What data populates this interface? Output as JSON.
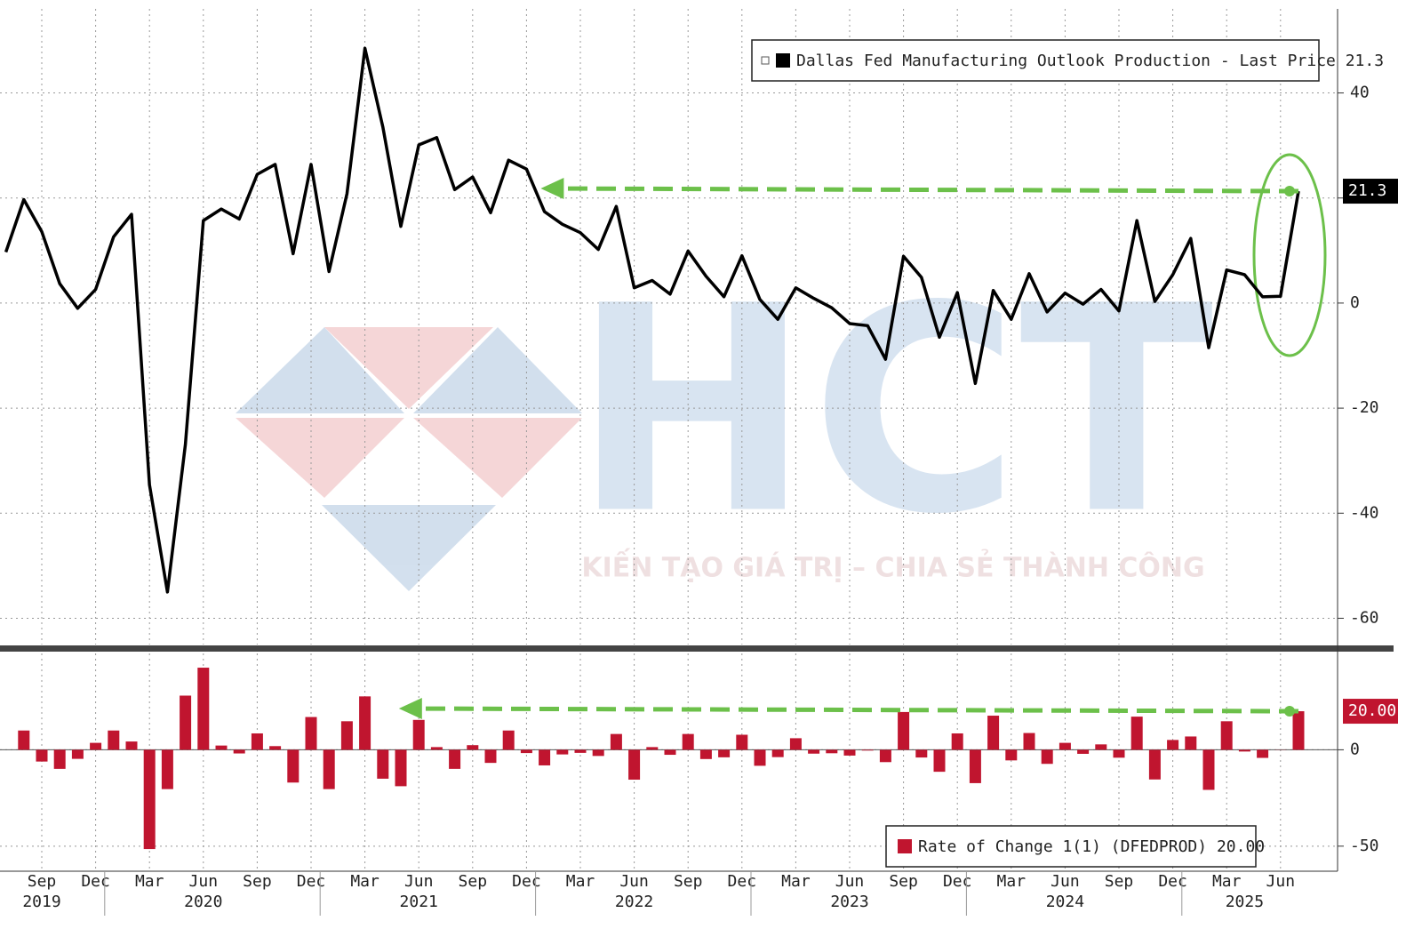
{
  "watermark": {
    "brand": "HCT",
    "slogan": "KIẾN TẠO GIÁ TRỊ – CHIA SẺ THÀNH CÔNG"
  },
  "chart_data": [
    {
      "type": "line",
      "x": [
        "2019-07",
        "2019-08",
        "2019-09",
        "2019-10",
        "2019-11",
        "2019-12",
        "2020-01",
        "2020-02",
        "2020-03",
        "2020-04",
        "2020-05",
        "2020-06",
        "2020-07",
        "2020-08",
        "2020-09",
        "2020-10",
        "2020-11",
        "2020-12",
        "2021-01",
        "2021-02",
        "2021-03",
        "2021-04",
        "2021-05",
        "2021-06",
        "2021-07",
        "2021-08",
        "2021-09",
        "2021-10",
        "2021-11",
        "2021-12",
        "2022-01",
        "2022-02",
        "2022-03",
        "2022-04",
        "2022-05",
        "2022-06",
        "2022-07",
        "2022-08",
        "2022-09",
        "2022-10",
        "2022-11",
        "2022-12",
        "2023-01",
        "2023-02",
        "2023-03",
        "2023-04",
        "2023-05",
        "2023-06",
        "2023-07",
        "2023-08",
        "2023-09",
        "2023-10",
        "2023-11",
        "2023-12",
        "2024-01",
        "2024-02",
        "2024-03",
        "2024-04",
        "2024-05",
        "2024-06",
        "2024-07",
        "2024-08",
        "2024-09",
        "2024-10",
        "2024-11",
        "2024-12",
        "2025-01",
        "2025-02",
        "2025-03",
        "2025-04",
        "2025-05",
        "2025-06",
        "2025-07"
      ],
      "series": [
        {
          "name": "Dallas Fed Manufacturing Outlook Production - Last Price 21.3",
          "color": "#000000",
          "values": [
            9.7,
            19.7,
            13.6,
            3.7,
            -1.0,
            2.6,
            12.6,
            16.9,
            -34.6,
            -55.0,
            -26.9,
            15.7,
            17.9,
            16.0,
            24.5,
            26.4,
            9.4,
            26.4,
            6.0,
            20.8,
            48.5,
            33.5,
            14.6,
            30.1,
            31.5,
            21.6,
            24.0,
            17.2,
            27.2,
            25.5,
            17.4,
            15.0,
            13.4,
            10.2,
            18.4,
            2.9,
            4.3,
            1.7,
            9.9,
            5.1,
            1.2,
            9.0,
            0.7,
            -3.1,
            2.9,
            0.9,
            -0.9,
            -3.9,
            -4.3,
            -10.7,
            8.9,
            4.9,
            -6.5,
            2.0,
            -15.3,
            2.4,
            -3.1,
            5.6,
            -1.7,
            1.9,
            -0.2,
            2.6,
            -1.5,
            15.7,
            0.3,
            5.4,
            12.3,
            -8.5,
            6.3,
            5.4,
            1.2,
            1.3,
            21.3
          ]
        }
      ],
      "last_label": "21.3",
      "ylim": [
        -65,
        56
      ],
      "yticks": [
        -60,
        -40,
        -20,
        0,
        20,
        40
      ],
      "grid": true
    },
    {
      "type": "bar",
      "x": [
        "2019-07",
        "2019-08",
        "2019-09",
        "2019-10",
        "2019-11",
        "2019-12",
        "2020-01",
        "2020-02",
        "2020-03",
        "2020-04",
        "2020-05",
        "2020-06",
        "2020-07",
        "2020-08",
        "2020-09",
        "2020-10",
        "2020-11",
        "2020-12",
        "2021-01",
        "2021-02",
        "2021-03",
        "2021-04",
        "2021-05",
        "2021-06",
        "2021-07",
        "2021-08",
        "2021-09",
        "2021-10",
        "2021-11",
        "2021-12",
        "2022-01",
        "2022-02",
        "2022-03",
        "2022-04",
        "2022-05",
        "2022-06",
        "2022-07",
        "2022-08",
        "2022-09",
        "2022-10",
        "2022-11",
        "2022-12",
        "2023-01",
        "2023-02",
        "2023-03",
        "2023-04",
        "2023-05",
        "2023-06",
        "2023-07",
        "2023-08",
        "2023-09",
        "2023-10",
        "2023-11",
        "2023-12",
        "2024-01",
        "2024-02",
        "2024-03",
        "2024-04",
        "2024-05",
        "2024-06",
        "2024-07",
        "2024-08",
        "2024-09",
        "2024-10",
        "2024-11",
        "2024-12",
        "2025-01",
        "2025-02",
        "2025-03",
        "2025-04",
        "2025-05",
        "2025-06",
        "2025-07"
      ],
      "series": [
        {
          "name": "Rate of Change 1(1) (DFEDPROD) 20.00",
          "color": "#c0152f",
          "values": [
            null,
            10.0,
            -6.1,
            -9.9,
            -4.7,
            3.6,
            10.0,
            4.3,
            -51.5,
            -20.4,
            28.1,
            42.6,
            2.2,
            -1.9,
            8.5,
            1.9,
            -17.0,
            17.0,
            -20.4,
            14.8,
            27.7,
            -15.0,
            -18.9,
            15.5,
            1.4,
            -9.9,
            2.4,
            -6.8,
            10.0,
            -1.7,
            -8.1,
            -2.4,
            -1.6,
            -3.2,
            8.2,
            -15.5,
            1.4,
            -2.6,
            8.2,
            -4.8,
            -3.9,
            7.8,
            -8.3,
            -3.8,
            6.0,
            -2.0,
            -1.8,
            -3.0,
            -0.4,
            -6.4,
            19.6,
            -4.0,
            -11.4,
            8.5,
            -17.3,
            17.7,
            -5.5,
            8.7,
            -7.3,
            3.6,
            -2.1,
            2.8,
            -4.1,
            17.2,
            -15.4,
            5.1,
            6.9,
            -20.8,
            14.8,
            -0.9,
            -4.2,
            0.1,
            20.0
          ]
        }
      ],
      "last_label": "20.00",
      "ylim": [
        -63,
        50
      ],
      "yticks": [
        -50,
        0
      ],
      "grid": true,
      "xticks": [
        {
          "value": "2019-09",
          "label": "Sep"
        },
        {
          "value": "2019-12",
          "label": "Dec"
        },
        {
          "value": "2020-03",
          "label": "Mar"
        },
        {
          "value": "2020-06",
          "label": "Jun"
        },
        {
          "value": "2020-09",
          "label": "Sep"
        },
        {
          "value": "2020-12",
          "label": "Dec"
        },
        {
          "value": "2021-03",
          "label": "Mar"
        },
        {
          "value": "2021-06",
          "label": "Jun"
        },
        {
          "value": "2021-09",
          "label": "Sep"
        },
        {
          "value": "2021-12",
          "label": "Dec"
        },
        {
          "value": "2022-03",
          "label": "Mar"
        },
        {
          "value": "2022-06",
          "label": "Jun"
        },
        {
          "value": "2022-09",
          "label": "Sep"
        },
        {
          "value": "2022-12",
          "label": "Dec"
        },
        {
          "value": "2023-03",
          "label": "Mar"
        },
        {
          "value": "2023-06",
          "label": "Jun"
        },
        {
          "value": "2023-09",
          "label": "Sep"
        },
        {
          "value": "2023-12",
          "label": "Dec"
        },
        {
          "value": "2024-03",
          "label": "Mar"
        },
        {
          "value": "2024-06",
          "label": "Jun"
        },
        {
          "value": "2024-09",
          "label": "Sep"
        },
        {
          "value": "2024-12",
          "label": "Dec"
        },
        {
          "value": "2025-03",
          "label": "Mar"
        },
        {
          "value": "2025-06",
          "label": "Jun"
        }
      ],
      "years": [
        {
          "value": "2019-09",
          "label": "2019"
        },
        {
          "value": "2020-06",
          "label": "2020"
        },
        {
          "value": "2021-06",
          "label": "2021"
        },
        {
          "value": "2022-06",
          "label": "2022"
        },
        {
          "value": "2023-06",
          "label": "2023"
        },
        {
          "value": "2024-06",
          "label": "2024"
        },
        {
          "value": "2025-04",
          "label": "2025"
        }
      ]
    }
  ]
}
